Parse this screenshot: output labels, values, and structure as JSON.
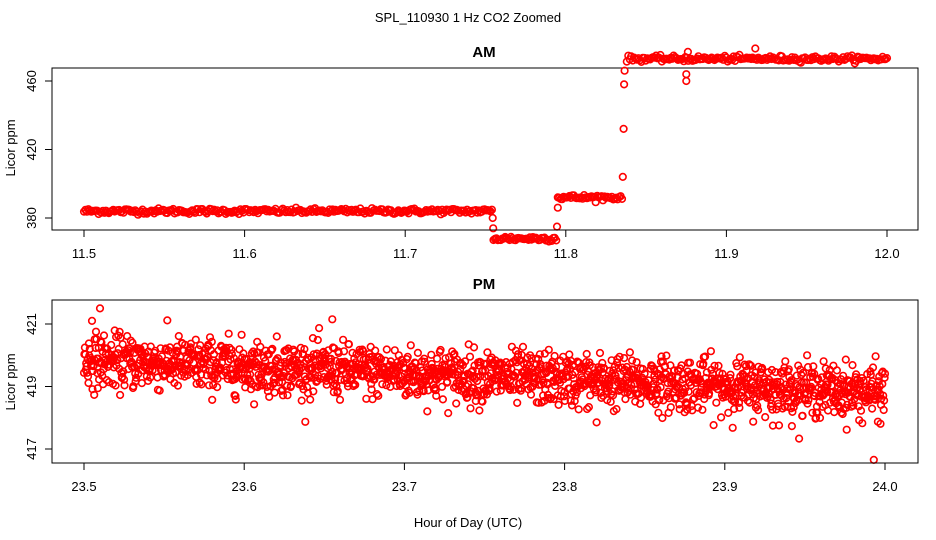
{
  "figure": {
    "title": "SPL_110930  1 Hz CO2 Zoomed",
    "xlabel": "Hour of Day (UTC)"
  },
  "chart_data": [
    {
      "type": "scatter",
      "title": "AM",
      "ylabel": "Licor ppm",
      "xlim": [
        11.5,
        12.0
      ],
      "ylim": [
        365,
        480
      ],
      "x_ticks": [
        11.5,
        11.6,
        11.7,
        11.8,
        11.9,
        12.0
      ],
      "x_tick_labels": [
        "11.5",
        "11.6",
        "11.7",
        "11.8",
        "11.9",
        "12.0"
      ],
      "y_ticks": [
        380,
        420,
        460
      ],
      "y_tick_labels": [
        "380",
        "420",
        "460"
      ],
      "marker_color": "#ff0000",
      "sampling_rate": "1 Hz",
      "segments": [
        {
          "x_start": 11.5,
          "x_end": 11.754,
          "level": 384,
          "spread": 0.8
        },
        {
          "x_start": 11.755,
          "x_end": 11.794,
          "level": 368,
          "spread": 0.8
        },
        {
          "x_start": 11.795,
          "x_end": 11.835,
          "level": 392,
          "spread": 0.8
        },
        {
          "x_start": 11.838,
          "x_end": 12.0,
          "level": 473,
          "spread": 0.8
        }
      ],
      "transition_points": [
        {
          "x": 11.7545,
          "y": 380
        },
        {
          "x": 11.7548,
          "y": 374
        },
        {
          "x": 11.7945,
          "y": 375
        },
        {
          "x": 11.795,
          "y": 386
        },
        {
          "x": 11.8355,
          "y": 404
        },
        {
          "x": 11.836,
          "y": 432
        },
        {
          "x": 11.8363,
          "y": 458
        },
        {
          "x": 11.8366,
          "y": 466
        }
      ],
      "outliers": [
        {
          "x": 11.875,
          "y": 460
        },
        {
          "x": 11.875,
          "y": 464
        },
        {
          "x": 11.876,
          "y": 477
        },
        {
          "x": 11.918,
          "y": 479
        }
      ]
    },
    {
      "type": "scatter",
      "title": "PM",
      "ylabel": "Licor ppm",
      "xlim": [
        23.5,
        24.0
      ],
      "ylim": [
        416.5,
        421.6
      ],
      "x_ticks": [
        23.5,
        23.6,
        23.7,
        23.8,
        23.9,
        24.0
      ],
      "x_tick_labels": [
        "23.5",
        "23.6",
        "23.7",
        "23.8",
        "23.9",
        "24.0"
      ],
      "y_ticks": [
        417,
        419,
        421
      ],
      "y_tick_labels": [
        "417",
        "419",
        "421"
      ],
      "marker_color": "#ff0000",
      "sampling_rate": "1 Hz",
      "trend": {
        "start": 419.85,
        "end": 418.8,
        "noise_sd": 0.42,
        "points": 1800
      },
      "outliers": [
        {
          "x": 23.51,
          "y": 421.5
        },
        {
          "x": 23.505,
          "y": 421.1
        },
        {
          "x": 23.655,
          "y": 421.15
        },
        {
          "x": 23.82,
          "y": 417.85
        },
        {
          "x": 23.93,
          "y": 417.75
        },
        {
          "x": 23.993,
          "y": 416.65
        }
      ]
    }
  ]
}
